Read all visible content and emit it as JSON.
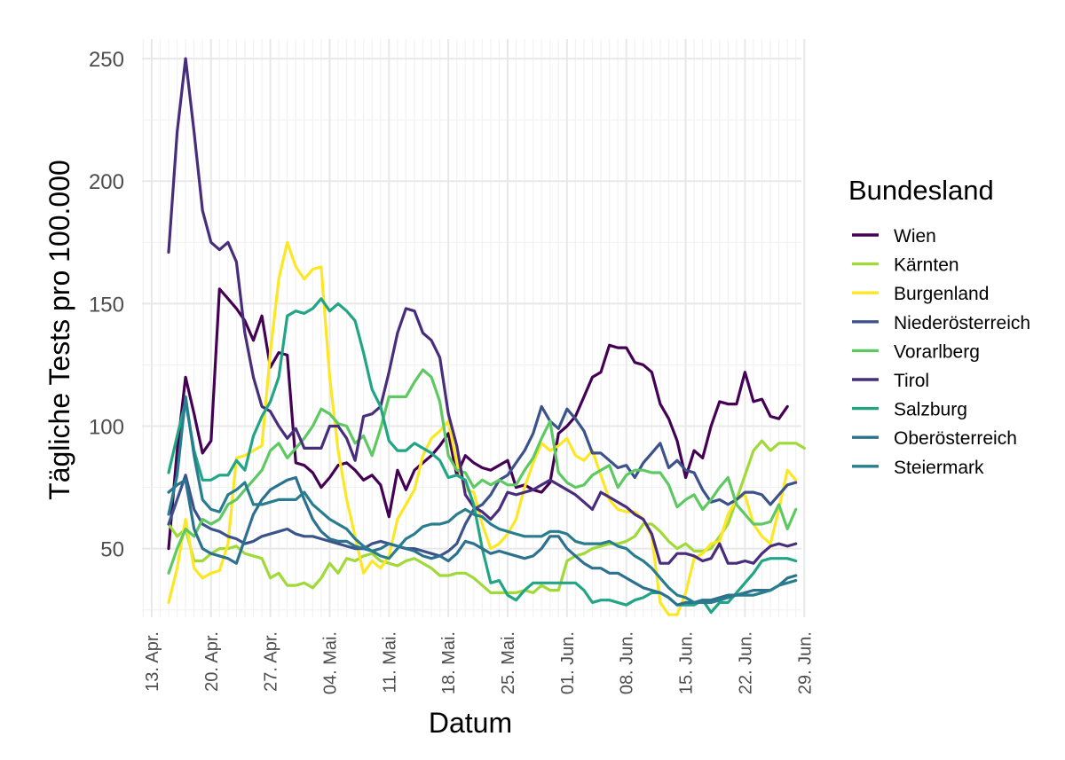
{
  "chart_data": {
    "type": "line",
    "title": "",
    "xlabel": "Datum",
    "ylabel": "Tägliche Tests pro 100.000",
    "x_start": "15. Apr.",
    "x_range_days": [
      0,
      74
    ],
    "ylim": [
      22,
      258
    ],
    "grid": true,
    "x_ticks": [
      {
        "day": -2,
        "label": "13. Apr."
      },
      {
        "day": 5,
        "label": "20. Apr."
      },
      {
        "day": 12,
        "label": "27. Apr."
      },
      {
        "day": 19,
        "label": "04. Mai."
      },
      {
        "day": 26,
        "label": "11. Mai."
      },
      {
        "day": 33,
        "label": "18. Mai."
      },
      {
        "day": 40,
        "label": "25. Mai."
      },
      {
        "day": 47,
        "label": "01. Jun."
      },
      {
        "day": 54,
        "label": "08. Jun."
      },
      {
        "day": 61,
        "label": "15. Jun."
      },
      {
        "day": 68,
        "label": "22. Jun."
      },
      {
        "day": 75,
        "label": "29. Jun."
      }
    ],
    "y_ticks": [
      50,
      100,
      150,
      200,
      250
    ],
    "legend": {
      "title": "Bundesland",
      "position": "right"
    },
    "series": [
      {
        "name": "Wien",
        "color": "#440154",
        "values": [
          50,
          90,
          120,
          105,
          89,
          94,
          156,
          152,
          148,
          143,
          135,
          145,
          124,
          130,
          129,
          85,
          84,
          81,
          75,
          79,
          84,
          85,
          82,
          78,
          80,
          76,
          63,
          82,
          74,
          82,
          85,
          88,
          92,
          97,
          80,
          88,
          85,
          83,
          82,
          84,
          86,
          75,
          76,
          74,
          73,
          77,
          97,
          100,
          104,
          112,
          120,
          122,
          133,
          132,
          132,
          126,
          125,
          122,
          109,
          103,
          94,
          79,
          90,
          87,
          100,
          110,
          109,
          109,
          122,
          110,
          111,
          104,
          103,
          108
        ]
      },
      {
        "name": "Kärnten",
        "color": "#a0da39",
        "values": [
          60,
          55,
          58,
          45,
          45,
          48,
          50,
          50,
          51,
          48,
          47,
          46,
          38,
          40,
          35,
          35,
          36,
          34,
          38,
          44,
          40,
          46,
          45,
          47,
          48,
          45,
          44,
          43,
          45,
          46,
          44,
          42,
          39,
          39,
          40,
          40,
          38,
          35,
          32,
          32,
          32,
          32,
          33,
          32,
          35,
          33,
          33,
          45,
          47,
          48,
          50,
          51,
          52,
          52,
          53,
          55,
          60,
          60,
          57,
          53,
          50,
          52,
          49,
          49,
          50,
          55,
          60,
          70,
          80,
          90,
          94,
          90,
          93,
          93,
          93,
          91
        ]
      },
      {
        "name": "Burgenland",
        "color": "#fde725",
        "values": [
          28,
          42,
          62,
          42,
          38,
          40,
          41,
          52,
          87,
          88,
          90,
          92,
          130,
          160,
          175,
          165,
          160,
          164,
          165,
          120,
          90,
          70,
          55,
          40,
          45,
          42,
          47,
          62,
          68,
          74,
          88,
          95,
          98,
          102,
          85,
          74,
          73,
          60,
          50,
          52,
          56,
          62,
          75,
          85,
          93,
          90,
          92,
          95,
          88,
          86,
          90,
          80,
          70,
          66,
          65,
          65,
          62,
          55,
          28,
          23,
          23,
          32,
          46,
          48,
          52,
          53,
          64,
          70,
          72,
          60,
          55,
          52,
          66,
          82,
          78
        ]
      },
      {
        "name": "Niederösterreich",
        "color": "#3b528b",
        "values": [
          60,
          70,
          80,
          66,
          60,
          58,
          57,
          55,
          54,
          52,
          53,
          55,
          56,
          57,
          58,
          56,
          55,
          55,
          54,
          53,
          52,
          51,
          50,
          50,
          52,
          53,
          52,
          51,
          50,
          50,
          49,
          48,
          47,
          49,
          52,
          60,
          66,
          68,
          72,
          78,
          80,
          85,
          90,
          97,
          108,
          102,
          99,
          107,
          103,
          98,
          89,
          89,
          86,
          83,
          84,
          79,
          85,
          89,
          93,
          83,
          86,
          82,
          81,
          74,
          69,
          70,
          68,
          70,
          73,
          73,
          72,
          68,
          72,
          76,
          77
        ]
      },
      {
        "name": "Vorarlberg",
        "color": "#5ec962",
        "values": [
          40,
          50,
          58,
          55,
          62,
          60,
          62,
          68,
          70,
          74,
          78,
          82,
          90,
          93,
          87,
          91,
          95,
          100,
          107,
          105,
          101,
          100,
          93,
          96,
          88,
          99,
          112,
          112,
          112,
          118,
          123,
          120,
          110,
          88,
          82,
          81,
          75,
          78,
          76,
          78,
          76,
          76,
          82,
          87,
          95,
          102,
          81,
          77,
          75,
          76,
          80,
          82,
          84,
          75,
          80,
          82,
          82,
          81,
          81,
          76,
          67,
          70,
          72,
          66,
          70,
          75,
          79,
          68,
          64,
          60,
          60,
          61,
          68,
          58,
          66
        ]
      },
      {
        "name": "Tirol",
        "color": "#472d7b",
        "values": [
          171,
          220,
          250,
          220,
          188,
          175,
          172,
          175,
          167,
          138,
          120,
          108,
          106,
          100,
          95,
          99,
          91,
          91,
          91,
          100,
          100,
          95,
          86,
          104,
          105,
          108,
          122,
          138,
          148,
          147,
          138,
          135,
          128,
          105,
          92,
          72,
          67,
          65,
          62,
          66,
          73,
          72,
          73,
          74,
          76,
          78,
          76,
          74,
          72,
          69,
          66,
          73,
          71,
          69,
          67,
          64,
          62,
          56,
          44,
          44,
          48,
          48,
          47,
          45,
          46,
          52,
          44,
          44,
          45,
          44,
          48,
          51,
          52,
          51,
          52
        ]
      },
      {
        "name": "Salzburg",
        "color": "#21a585",
        "values": [
          81,
          96,
          110,
          90,
          78,
          78,
          80,
          80,
          86,
          82,
          96,
          104,
          110,
          120,
          145,
          147,
          146,
          148,
          152,
          147,
          150,
          147,
          143,
          130,
          115,
          108,
          94,
          90,
          90,
          93,
          91,
          89,
          86,
          79,
          80,
          78,
          68,
          50,
          36,
          37,
          31,
          29,
          33,
          36,
          36,
          36,
          36,
          36,
          36,
          33,
          28,
          29,
          29,
          28,
          27,
          29,
          30,
          32,
          32,
          30,
          27,
          27,
          27,
          29,
          24,
          28,
          28,
          32,
          36,
          40,
          45,
          46,
          46,
          46,
          45
        ]
      },
      {
        "name": "Oberösterreich",
        "color": "#2c728e",
        "values": [
          73,
          76,
          78,
          58,
          50,
          48,
          47,
          46,
          44,
          54,
          64,
          70,
          74,
          76,
          78,
          79,
          70,
          62,
          57,
          54,
          53,
          53,
          51,
          50,
          49,
          50,
          52,
          51,
          50,
          49,
          47,
          46,
          47,
          45,
          48,
          53,
          52,
          50,
          48,
          49,
          48,
          47,
          46,
          47,
          50,
          55,
          55,
          50,
          47,
          44,
          42,
          42,
          40,
          40,
          38,
          36,
          34,
          33,
          32,
          30,
          27,
          28,
          28,
          29,
          29,
          30,
          31,
          31,
          32,
          33,
          33,
          33,
          35,
          38,
          39
        ]
      },
      {
        "name": "Steiermark",
        "color": "#287d8e",
        "values": [
          64,
          80,
          112,
          88,
          70,
          66,
          65,
          72,
          74,
          77,
          68,
          68,
          69,
          70,
          70,
          70,
          73,
          68,
          65,
          62,
          60,
          58,
          54,
          51,
          49,
          47,
          46,
          50,
          54,
          56,
          59,
          60,
          60,
          61,
          64,
          66,
          64,
          63,
          60,
          58,
          57,
          56,
          55,
          55,
          55,
          57,
          57,
          56,
          53,
          52,
          52,
          52,
          53,
          51,
          50,
          47,
          45,
          42,
          38,
          34,
          31,
          30,
          28,
          28,
          28,
          29,
          30,
          31,
          31,
          31,
          32,
          33,
          35,
          36,
          37
        ]
      }
    ]
  }
}
